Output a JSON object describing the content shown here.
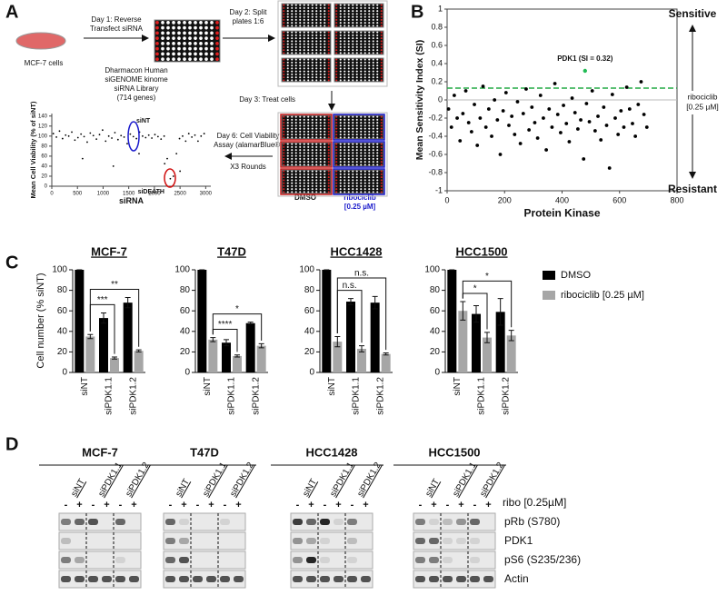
{
  "panel_labels": [
    "A",
    "B",
    "C",
    "D"
  ],
  "workflow": {
    "cells_label": "MCF-7 cells",
    "day1": [
      "Day 1: Reverse",
      "Transfect siRNA"
    ],
    "library": [
      "Dharmacon Human",
      "siGENOME kinome",
      "siRNA Library",
      "(714 genes)"
    ],
    "day2": [
      "Day 2: Split",
      "plates 1:6"
    ],
    "day3": "Day 3: Treat cells",
    "day6": [
      "Day 6: Cell Viability",
      "Assay (alamarBlue®)"
    ],
    "rounds": "X3 Rounds",
    "dmso": "DMSO",
    "ribo": [
      "ribociclib",
      "[0.25 µM]"
    ]
  },
  "chart_data": [
    {
      "type": "scatter",
      "xlabel": "siRNA",
      "ylabel": "Mean Cell Viability (% of siNT)",
      "color": "#000000",
      "x": [
        30,
        90,
        150,
        210,
        270,
        330,
        390,
        450,
        510,
        570,
        630,
        690,
        750,
        810,
        870,
        930,
        990,
        1050,
        1110,
        1170,
        1230,
        1290,
        1350,
        1410,
        1470,
        1530,
        1590,
        1650,
        1710,
        1770,
        1830,
        1890,
        1950,
        2010,
        2070,
        2130,
        2190,
        2250,
        2310,
        2370,
        2430,
        2490,
        2550,
        2610,
        2670,
        2730,
        2790,
        2850,
        2910,
        2970,
        600,
        1200,
        1700,
        2200,
        2500
      ],
      "y": [
        105,
        98,
        110,
        95,
        102,
        100,
        108,
        92,
        97,
        104,
        99,
        88,
        106,
        101,
        94,
        103,
        112,
        90,
        100,
        96,
        107,
        93,
        101,
        98,
        85,
        104,
        99,
        95,
        108,
        100,
        97,
        102,
        96,
        103,
        99,
        94,
        100,
        55,
        15,
        20,
        65,
        95,
        100,
        90,
        105,
        98,
        102,
        90,
        100,
        105,
        55,
        40,
        65,
        45,
        30
      ],
      "xlim": [
        0,
        3100
      ],
      "ylim": [
        0,
        145
      ],
      "xticks": [
        0,
        500,
        1000,
        1500,
        2000,
        2500,
        3000
      ],
      "yticks": [
        0,
        20,
        40,
        60,
        80,
        100,
        120,
        140
      ],
      "annotations": [
        {
          "text": "siNT",
          "color": "#1a1acc"
        },
        {
          "text": "siDEATH",
          "color": "#d01010"
        }
      ]
    },
    {
      "type": "scatter",
      "xlabel": "Protein Kinase",
      "ylabel": "Mean Sensitivity Index (SI)",
      "color": "#000000",
      "x": [
        5,
        15,
        25,
        35,
        45,
        55,
        65,
        75,
        85,
        95,
        105,
        115,
        125,
        135,
        145,
        155,
        165,
        175,
        185,
        195,
        205,
        215,
        225,
        235,
        245,
        255,
        265,
        275,
        285,
        295,
        305,
        315,
        325,
        335,
        345,
        355,
        365,
        375,
        385,
        395,
        405,
        415,
        425,
        435,
        445,
        455,
        465,
        475,
        485,
        495,
        505,
        515,
        525,
        535,
        545,
        555,
        565,
        575,
        585,
        595,
        605,
        615,
        625,
        635,
        645,
        655,
        665,
        675,
        685,
        695
      ],
      "y": [
        -0.1,
        -0.3,
        0.05,
        -0.2,
        -0.45,
        -0.15,
        0.1,
        -0.25,
        -0.35,
        -0.05,
        -0.5,
        -0.2,
        0.15,
        -0.3,
        -0.1,
        -0.4,
        0.0,
        -0.22,
        -0.6,
        -0.12,
        0.08,
        -0.28,
        -0.18,
        -0.38,
        -0.02,
        -0.48,
        -0.15,
        0.12,
        -0.33,
        -0.08,
        -0.25,
        -0.42,
        0.05,
        -0.2,
        -0.55,
        -0.1,
        -0.3,
        0.18,
        -0.16,
        -0.36,
        -0.06,
        -0.26,
        -0.46,
        0.02,
        -0.14,
        -0.32,
        -0.22,
        -0.65,
        -0.04,
        -0.24,
        0.1,
        -0.34,
        -0.18,
        -0.44,
        -0.08,
        -0.28,
        -0.75,
        0.06,
        -0.2,
        -0.38,
        -0.12,
        -0.3,
        0.14,
        -0.1,
        -0.26,
        -0.4,
        -0.05,
        0.2,
        -0.16,
        -0.3
      ],
      "xlim": [
        0,
        800
      ],
      "ylim": [
        -1,
        1
      ],
      "xticks": [
        0,
        200,
        400,
        600,
        800
      ],
      "yticks": [
        -1,
        -0.8,
        -0.6,
        -0.4,
        -0.2,
        0,
        0.2,
        0.4,
        0.6,
        0.8,
        1
      ],
      "threshold": {
        "value": 0.13,
        "color": "#22aa44"
      },
      "highlight": {
        "label": "PDK1 (SI = 0.32)",
        "x": 480,
        "y": 0.32,
        "color": "#22bb55"
      },
      "sensitive": "Sensitive",
      "resistant": "Resistant",
      "side_label": [
        "ribociclib",
        "[0.25 µM]"
      ]
    },
    {
      "type": "bar",
      "ylabel": "Cell number (% siNT)",
      "categories": [
        "siNT",
        "siPDK1.1",
        "siPDK1.2"
      ],
      "series": [
        {
          "name": "DMSO",
          "color": "#000000"
        },
        {
          "name": "ribociclib [0.25 µM]",
          "color": "#a6a6a6"
        }
      ],
      "ylim": [
        0,
        100
      ],
      "yticks": [
        0,
        20,
        40,
        60,
        80,
        100
      ],
      "panels": [
        {
          "title": "MCF-7",
          "values": [
            [
              100,
              53,
              68
            ],
            [
              35,
              14,
              21
            ]
          ],
          "errors": [
            [
              0,
              5,
              5
            ],
            [
              2,
              1,
              1
            ]
          ],
          "comparisons": [
            "***",
            "**"
          ]
        },
        {
          "title": "T47D",
          "values": [
            [
              100,
              29,
              48
            ],
            [
              32,
              16,
              26
            ]
          ],
          "errors": [
            [
              0,
              3,
              1
            ],
            [
              2,
              1,
              2
            ]
          ],
          "comparisons": [
            "****",
            "*"
          ]
        },
        {
          "title": "HCC1428",
          "values": [
            [
              100,
              69,
              68
            ],
            [
              30,
              23,
              18
            ]
          ],
          "errors": [
            [
              0,
              3,
              6
            ],
            [
              5,
              3,
              1
            ]
          ],
          "comparisons": [
            "n.s.",
            "n.s."
          ]
        },
        {
          "title": "HCC1500",
          "values": [
            [
              100,
              57,
              59
            ],
            [
              60,
              34,
              36
            ]
          ],
          "errors": [
            [
              0,
              8,
              13
            ],
            [
              9,
              5,
              5
            ]
          ],
          "comparisons": [
            "*",
            "*"
          ]
        }
      ]
    }
  ],
  "blot": {
    "cell_lines": [
      "MCF-7",
      "T47D",
      "HCC1428",
      "HCC1500"
    ],
    "lanes": [
      "siNT",
      "siPDK1.1",
      "siPDK1.2"
    ],
    "treatment": [
      "-",
      "+"
    ],
    "treatment_label": "ribo [0.25µM]",
    "rows": [
      "pRb (S780)",
      "PDK1",
      "pS6 (S235/236)",
      "Actin"
    ]
  }
}
